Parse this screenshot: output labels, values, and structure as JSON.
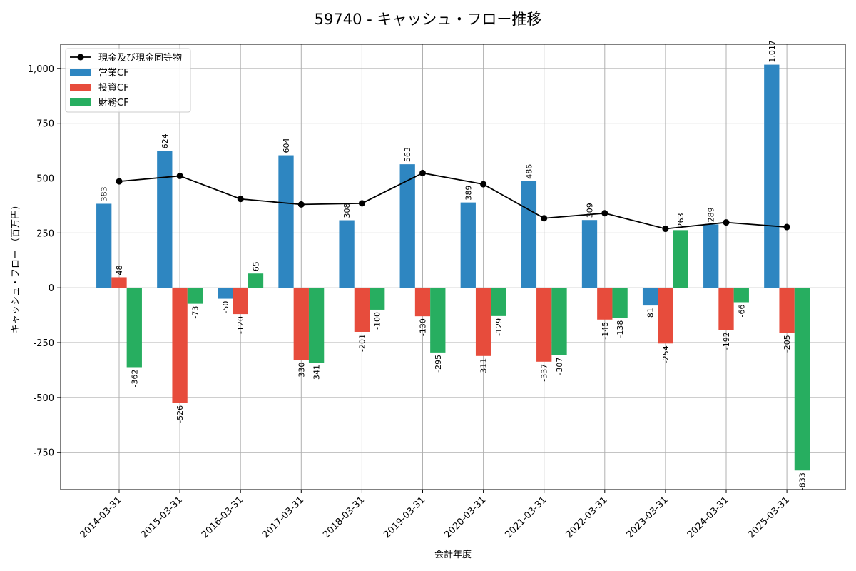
{
  "chart_data": {
    "type": "bar",
    "title": "59740 - キャッシュ・フロー推移",
    "xlabel": "会計年度",
    "ylabel": "キャッシュ・フロー （百万円）",
    "categories": [
      "2014-03-31",
      "2015-03-31",
      "2016-03-31",
      "2017-03-31",
      "2018-03-31",
      "2019-03-31",
      "2020-03-31",
      "2021-03-31",
      "2022-03-31",
      "2023-03-31",
      "2024-03-31",
      "2025-03-31"
    ],
    "ylim": [
      -920,
      1110
    ],
    "yticks": [
      -750,
      -500,
      -250,
      0,
      250,
      500,
      750,
      1000
    ],
    "ytick_labels": [
      "-750",
      "-500",
      "-250",
      "0",
      "250",
      "500",
      "750",
      "1,000"
    ],
    "grid": true,
    "legend_position": "top-left",
    "series": [
      {
        "name": "営業CF",
        "kind": "bar",
        "color": "#2e86c1",
        "values": [
          383,
          624,
          -50,
          604,
          308,
          563,
          389,
          486,
          309,
          -81,
          289,
          1017
        ],
        "labels": [
          "383",
          "624",
          "-50",
          "604",
          "308",
          "563",
          "389",
          "486",
          "309",
          "-81",
          "289",
          "1,017"
        ]
      },
      {
        "name": "投資CF",
        "kind": "bar",
        "color": "#e74c3c",
        "values": [
          48,
          -526,
          -120,
          -330,
          -201,
          -130,
          -311,
          -337,
          -145,
          -254,
          -192,
          -205
        ],
        "labels": [
          "48",
          "-526",
          "-120",
          "-330",
          "-201",
          "-130",
          "-311",
          "-337",
          "-145",
          "-254",
          "-192",
          "-205"
        ]
      },
      {
        "name": "財務CF",
        "kind": "bar",
        "color": "#27ae60",
        "values": [
          -362,
          -73,
          65,
          -341,
          -100,
          -295,
          -129,
          -307,
          -138,
          263,
          -66,
          -833
        ],
        "labels": [
          "-362",
          "-73",
          "65",
          "-341",
          "-100",
          "-295",
          "-129",
          "-307",
          "-138",
          "263",
          "-66",
          "-833"
        ]
      },
      {
        "name": "現金及び現金同等物",
        "kind": "line",
        "color": "#000000",
        "values": [
          485,
          510,
          405,
          380,
          385,
          523,
          472,
          317,
          340,
          269,
          298,
          277
        ]
      }
    ]
  }
}
